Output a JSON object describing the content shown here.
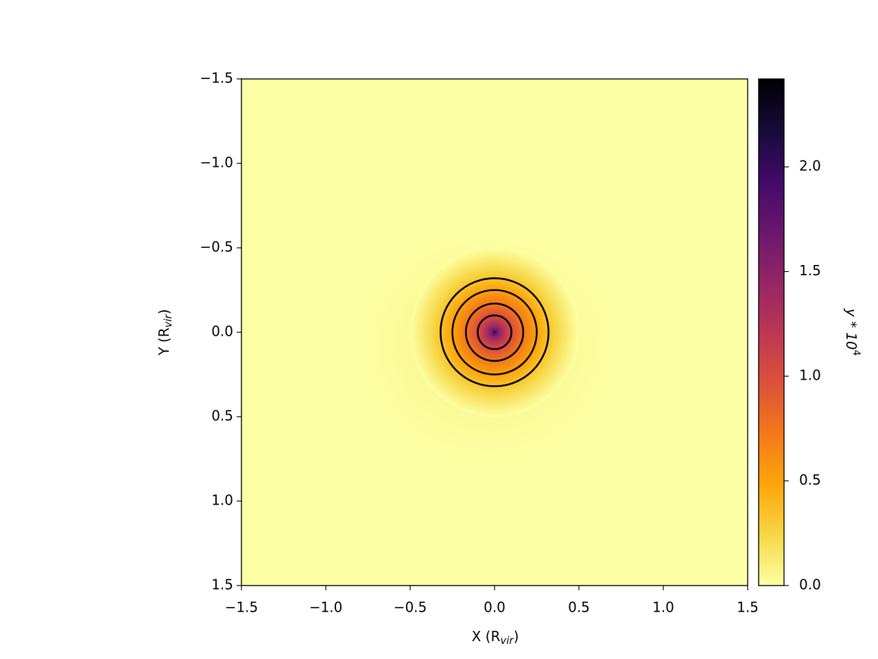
{
  "chart_data": {
    "type": "heatmap",
    "xlabel": [
      "X (R",
      "vir",
      ")"
    ],
    "ylabel": [
      "Y (R",
      "vir",
      ")"
    ],
    "colorbar_label": [
      "y * 10",
      "4"
    ],
    "xlim": [
      -1.5,
      1.5
    ],
    "ylim": [
      -1.5,
      1.5
    ],
    "y_inverted": true,
    "xticks": [
      {
        "value": -1.5,
        "label": "−1.5"
      },
      {
        "value": -1.0,
        "label": "−1.0"
      },
      {
        "value": -0.5,
        "label": "−0.5"
      },
      {
        "value": 0,
        "label": "0.0"
      },
      0.5,
      {
        "value": 1.0,
        "label": "1.0"
      },
      1.5
    ],
    "yticks": [
      {
        "value": -1.5,
        "label": "−1.5"
      },
      {
        "value": -1.0,
        "label": "−1.0"
      },
      {
        "value": -0.5,
        "label": "−0.5"
      },
      {
        "value": 0,
        "label": "0.0"
      },
      0.5,
      {
        "value": 1.0,
        "label": "1.0"
      },
      1.5
    ],
    "clim": [
      0,
      2.42
    ],
    "cticks": [
      {
        "value": 0,
        "label": "0.0"
      },
      0.5,
      {
        "value": 1.0,
        "label": "1.0"
      },
      1.5,
      {
        "value": 2.0,
        "label": "2.0"
      }
    ],
    "colormap": [
      "#fcffa4",
      "#f6d746",
      "#fca50a",
      "#f37819",
      "#dd513a",
      "#bc3754",
      "#932667",
      "#6a176e",
      "#420a68",
      "#160b39",
      "#000004"
    ],
    "contours": {
      "color": "#000000",
      "x": [
        0,
        0,
        0,
        0
      ],
      "y": [
        0,
        0,
        0,
        0
      ],
      "r": [
        0.32,
        0.25,
        0.17,
        0.1
      ]
    }
  }
}
